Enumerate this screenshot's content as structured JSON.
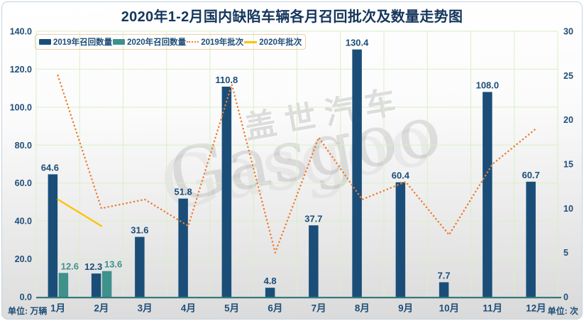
{
  "title": "2020年1-2月国内缺陷车辆各月召回批次及数量走势图",
  "watermark": {
    "cn": "盖世汽车",
    "en": "Gasgoo"
  },
  "units": {
    "left": "单位: 万辆",
    "right": "单位: 次"
  },
  "colors": {
    "bar2019": "#1a4e78",
    "bar2020": "#3f918c",
    "line2019": "#ed7d31",
    "line2020": "#ffc000",
    "grid": "#d9efc7",
    "axis": "#35797c",
    "label": "#1f4e79",
    "title": "#15365c"
  },
  "chart_data": {
    "type": "combo-bar-line",
    "categories": [
      "1月",
      "2月",
      "3月",
      "4月",
      "5月",
      "6月",
      "7月",
      "8月",
      "9月",
      "10月",
      "11月",
      "12月"
    ],
    "series": [
      {
        "name": "2019年召回数量",
        "type": "bar",
        "axis": "left",
        "color": "#1a4e78",
        "values": [
          64.6,
          12.3,
          31.6,
          51.8,
          110.8,
          4.8,
          37.7,
          130.4,
          60.4,
          7.7,
          108.0,
          60.7
        ]
      },
      {
        "name": "2020年召回数量",
        "type": "bar",
        "axis": "left",
        "color": "#3f918c",
        "values": [
          12.6,
          13.6,
          null,
          null,
          null,
          null,
          null,
          null,
          null,
          null,
          null,
          null
        ]
      },
      {
        "name": "2019年批次",
        "type": "line",
        "style": "dotted",
        "axis": "right",
        "color": "#ed7d31",
        "values": [
          25,
          10,
          11,
          8,
          24,
          5,
          18,
          11,
          13,
          7,
          15,
          19
        ]
      },
      {
        "name": "2020年批次",
        "type": "line",
        "style": "solid",
        "axis": "right",
        "color": "#ffc000",
        "values": [
          11,
          8,
          null,
          null,
          null,
          null,
          null,
          null,
          null,
          null,
          null,
          null
        ]
      }
    ],
    "left_axis": {
      "min": 0,
      "max": 140,
      "step": 20,
      "decimals": 1,
      "unit": "万辆"
    },
    "right_axis": {
      "min": 0,
      "max": 30,
      "step": 5,
      "decimals": 0,
      "unit": "次"
    },
    "grid": true,
    "legend_position": "top-left-inside"
  }
}
